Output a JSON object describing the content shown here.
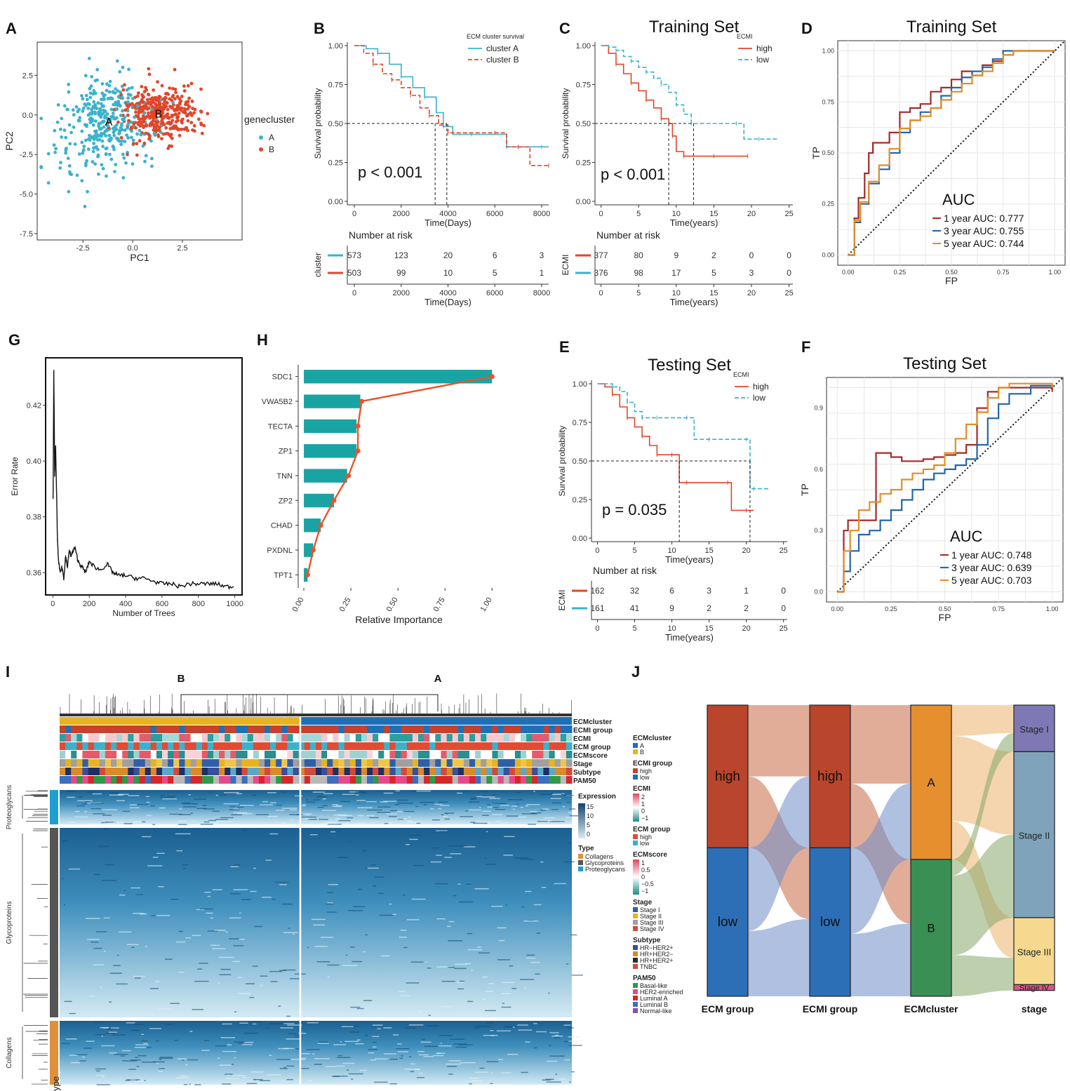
{
  "panel_labels": [
    "A",
    "B",
    "C",
    "D",
    "G",
    "H",
    "E",
    "F",
    "I",
    "J"
  ],
  "colors": {
    "red": "#e2462a",
    "teal": "#3bb2cc",
    "roc1": "#a52a2a",
    "roc3": "#2166ac",
    "roc5": "#e08f29",
    "bar": "#1aa3a3",
    "heatTop": "#1b5a8a",
    "heatLow": "#d6ebf4"
  },
  "chart_data": [
    {
      "id": "A",
      "type": "scatter",
      "xlabel": "PC1",
      "ylabel": "PC2",
      "xticks": [
        "-2.5",
        "0.0",
        "2.5"
      ],
      "yticks": [
        "2.5",
        "0.0",
        "-2.5",
        "-5.0",
        "-7.5"
      ],
      "xlim": [
        -4.8,
        5.5
      ],
      "ylim": [
        -7.9,
        4.6
      ],
      "legend_title": "genecluster",
      "legend": [
        "A",
        "B"
      ],
      "cluster_labels": [
        "A",
        "B"
      ],
      "centers": [
        {
          "name": "A",
          "x": -1.2,
          "y": -0.4
        },
        {
          "name": "B",
          "x": 1.3,
          "y": 0.1
        }
      ]
    },
    {
      "id": "B",
      "type": "line",
      "legend_title": "ECM cluster survival",
      "legend": [
        "cluster A",
        "cluster B"
      ],
      "xlabel": "Time(Days)",
      "ylabel": "Survival probability",
      "xticks": [
        "0",
        "2000",
        "4000",
        "6000",
        "8000"
      ],
      "yticks": [
        "1.00",
        "0.75",
        "0.50",
        "0.25",
        "0.00"
      ],
      "xlim": [
        -300,
        8300
      ],
      "pvalue": "p < 0.001",
      "series": [
        {
          "name": "cluster A",
          "x": [
            0,
            500,
            1000,
            1500,
            2000,
            2500,
            3000,
            3500,
            3800,
            4200,
            5000,
            6000,
            6500,
            7000,
            8000,
            8300
          ],
          "y": [
            1.0,
            0.98,
            0.95,
            0.88,
            0.8,
            0.73,
            0.67,
            0.57,
            0.48,
            0.43,
            0.43,
            0.43,
            0.35,
            0.35,
            0.35,
            0.35
          ]
        },
        {
          "name": "cluster B",
          "x": [
            0,
            400,
            800,
            1200,
            1600,
            2000,
            2400,
            2800,
            3200,
            3600,
            4000,
            5000,
            6000,
            6500,
            7000,
            7500,
            8300
          ],
          "y": [
            1.0,
            0.95,
            0.88,
            0.82,
            0.78,
            0.73,
            0.68,
            0.6,
            0.55,
            0.49,
            0.44,
            0.44,
            0.44,
            0.35,
            0.35,
            0.23,
            0.23
          ]
        }
      ],
      "risk_title": "Number at risk",
      "risk_label": "cluster",
      "risk_xticks": [
        "0",
        "2000",
        "4000",
        "6000",
        "8000"
      ],
      "risk_xlabel": "Time(Days)",
      "risk": [
        [
          "573",
          "123",
          "20",
          "6",
          "3"
        ],
        [
          "503",
          "99",
          "10",
          "5",
          "1"
        ]
      ]
    },
    {
      "id": "C",
      "type": "line",
      "title": "Training Set",
      "legend_title": "ECMI",
      "legend": [
        "high",
        "low"
      ],
      "xlabel": "Time(years)",
      "ylabel": "Survival probability",
      "xticks": [
        "0",
        "5",
        "10",
        "15",
        "20",
        "25"
      ],
      "yticks": [
        "1.00",
        "0.75",
        "0.50",
        "0.25",
        "0.00"
      ],
      "xlim": [
        -0.8,
        25.5
      ],
      "pvalue": "p < 0.001",
      "series": [
        {
          "name": "high",
          "x": [
            0,
            1,
            2,
            3,
            4,
            5,
            6,
            7,
            8,
            9,
            9.5,
            10,
            11,
            12,
            15,
            18,
            19.5
          ],
          "y": [
            1.0,
            0.95,
            0.88,
            0.82,
            0.76,
            0.71,
            0.65,
            0.6,
            0.53,
            0.5,
            0.42,
            0.32,
            0.29,
            0.29,
            0.29,
            0.29,
            0.29
          ]
        },
        {
          "name": "low",
          "x": [
            0,
            1,
            2,
            3,
            4,
            5,
            6,
            7,
            8,
            9,
            10,
            11,
            12,
            15,
            18,
            19,
            21,
            23.5
          ],
          "y": [
            1.0,
            0.99,
            0.97,
            0.93,
            0.9,
            0.86,
            0.83,
            0.79,
            0.75,
            0.7,
            0.62,
            0.56,
            0.5,
            0.5,
            0.5,
            0.4,
            0.4,
            0.4
          ]
        }
      ],
      "risk_title": "Number at risk",
      "risk_label": "ECMI",
      "risk_xticks": [
        "0",
        "5",
        "10",
        "15",
        "20",
        "25"
      ],
      "risk_xlabel": "Time(years)",
      "risk": [
        [
          "377",
          "80",
          "9",
          "2",
          "0",
          "0"
        ],
        [
          "376",
          "98",
          "17",
          "5",
          "3",
          "0"
        ]
      ]
    },
    {
      "id": "D",
      "type": "line",
      "title": "Training Set",
      "xlabel": "FP",
      "ylabel": "TP",
      "xticks": [
        "0.00",
        "0.25",
        "0.50",
        "0.75",
        "1.00"
      ],
      "yticks": [
        "1.00",
        "0.75",
        "0.50",
        "0.25",
        "0.00"
      ],
      "auc_title": "AUC",
      "series": [
        {
          "name": "1 year AUC: 0.777",
          "x": [
            0,
            0.03,
            0.05,
            0.08,
            0.1,
            0.12,
            0.15,
            0.2,
            0.25,
            0.3,
            0.35,
            0.4,
            0.45,
            0.5,
            0.55,
            0.6,
            0.65,
            0.7,
            0.75,
            0.8,
            0.9,
            1.0
          ],
          "y": [
            0,
            0.18,
            0.28,
            0.4,
            0.5,
            0.55,
            0.55,
            0.6,
            0.7,
            0.72,
            0.74,
            0.8,
            0.82,
            0.86,
            0.9,
            0.88,
            0.93,
            0.95,
            0.98,
            1.0,
            1.0,
            1.0
          ]
        },
        {
          "name": "3 year AUC: 0.755",
          "x": [
            0,
            0.03,
            0.06,
            0.1,
            0.15,
            0.2,
            0.25,
            0.3,
            0.35,
            0.4,
            0.45,
            0.5,
            0.55,
            0.6,
            0.65,
            0.7,
            0.75,
            0.8,
            0.9,
            1.0
          ],
          "y": [
            0,
            0.16,
            0.25,
            0.35,
            0.42,
            0.5,
            0.6,
            0.66,
            0.7,
            0.72,
            0.78,
            0.82,
            0.87,
            0.9,
            0.92,
            0.96,
            1.0,
            1.0,
            1.0,
            1.0
          ]
        },
        {
          "name": "5 year AUC: 0.744",
          "x": [
            0,
            0.03,
            0.06,
            0.1,
            0.15,
            0.2,
            0.25,
            0.3,
            0.35,
            0.4,
            0.45,
            0.5,
            0.55,
            0.6,
            0.65,
            0.7,
            0.75,
            0.8,
            0.9,
            1.0
          ],
          "y": [
            0,
            0.17,
            0.26,
            0.36,
            0.44,
            0.52,
            0.62,
            0.66,
            0.68,
            0.72,
            0.76,
            0.8,
            0.84,
            0.88,
            0.9,
            0.94,
            0.98,
            1.0,
            1.0,
            1.0
          ]
        }
      ]
    },
    {
      "id": "G",
      "type": "line",
      "xlabel": "Number of Trees",
      "ylabel": "Error Rate",
      "xticks": [
        "0",
        "200",
        "400",
        "600",
        "800",
        "1000"
      ],
      "yticks": [
        "0.42",
        "0.40",
        "0.38",
        "0.36"
      ],
      "xlim": [
        -40,
        1040
      ],
      "ylim": [
        0.352,
        0.437
      ],
      "x": [
        1,
        5,
        10,
        15,
        20,
        25,
        30,
        40,
        50,
        60,
        70,
        80,
        90,
        100,
        120,
        140,
        160,
        180,
        200,
        230,
        260,
        300,
        330,
        360,
        400,
        450,
        500,
        550,
        600,
        650,
        700,
        750,
        800,
        850,
        900,
        950,
        1000
      ],
      "y": [
        0.386,
        0.432,
        0.395,
        0.405,
        0.39,
        0.372,
        0.365,
        0.36,
        0.362,
        0.358,
        0.366,
        0.362,
        0.368,
        0.366,
        0.369,
        0.364,
        0.362,
        0.36,
        0.364,
        0.362,
        0.361,
        0.363,
        0.36,
        0.359,
        0.359,
        0.358,
        0.358,
        0.357,
        0.356,
        0.356,
        0.355,
        0.356,
        0.356,
        0.356,
        0.356,
        0.355,
        0.355
      ]
    },
    {
      "id": "H",
      "type": "bar",
      "orientation": "horizontal",
      "xlabel": "Relative Importance",
      "xticks": [
        "0.00",
        "0.25",
        "0.50",
        "0.75",
        "1.00"
      ],
      "categories": [
        "SDC1",
        "VWA5B2",
        "TECTA",
        "ZP1",
        "TNN",
        "ZP2",
        "CHAD",
        "PXDNL",
        "TPT1"
      ],
      "values": [
        1.0,
        0.3,
        0.28,
        0.28,
        0.23,
        0.16,
        0.09,
        0.05,
        0.02
      ]
    },
    {
      "id": "E",
      "type": "line",
      "title": "Testing Set",
      "legend_title": "ECMI",
      "legend": [
        "high",
        "low"
      ],
      "xlabel": "Time(years)",
      "ylabel": "Survival probability",
      "xticks": [
        "0",
        "5",
        "10",
        "15",
        "20",
        "25"
      ],
      "yticks": [
        "1.00",
        "0.75",
        "0.50",
        "0.25",
        "0.00"
      ],
      "xlim": [
        -0.8,
        25.5
      ],
      "pvalue": "p = 0.035",
      "series": [
        {
          "name": "high",
          "x": [
            0,
            1,
            2,
            3,
            4,
            5,
            6,
            7,
            8,
            9,
            10,
            11,
            12,
            15,
            17.5,
            18,
            20,
            21
          ],
          "y": [
            1.0,
            0.98,
            0.93,
            0.85,
            0.78,
            0.72,
            0.66,
            0.6,
            0.54,
            0.54,
            0.54,
            0.36,
            0.36,
            0.36,
            0.36,
            0.18,
            0.18,
            0.18
          ]
        },
        {
          "name": "low",
          "x": [
            0,
            1,
            2,
            3,
            4,
            5,
            6,
            7,
            8,
            10,
            12,
            13,
            15,
            18,
            20,
            20.5,
            21,
            23
          ],
          "y": [
            1.0,
            1.0,
            0.98,
            0.95,
            0.88,
            0.82,
            0.78,
            0.78,
            0.78,
            0.78,
            0.78,
            0.64,
            0.64,
            0.64,
            0.64,
            0.32,
            0.32,
            0.32
          ]
        }
      ],
      "risk_title": "Number at risk",
      "risk_label": "ECMI",
      "risk_xticks": [
        "0",
        "5",
        "10",
        "15",
        "20",
        "25"
      ],
      "risk_xlabel": "Time(years)",
      "risk": [
        [
          "162",
          "32",
          "6",
          "3",
          "1",
          "0"
        ],
        [
          "161",
          "41",
          "9",
          "2",
          "2",
          "0"
        ]
      ]
    },
    {
      "id": "F",
      "type": "line",
      "title": "Testing Set",
      "xlabel": "FP",
      "ylabel": "TP",
      "xticks": [
        "0.00",
        "0.25",
        "0.50",
        "0.75",
        "1.00"
      ],
      "yticks": [
        "0.9",
        "0.6",
        "0.3",
        "0.0"
      ],
      "ylim": [
        0,
        1.05
      ],
      "auc_title": "AUC",
      "series": [
        {
          "name": "1 year AUC: 0.748",
          "x": [
            0,
            0.03,
            0.05,
            0.1,
            0.15,
            0.18,
            0.2,
            0.25,
            0.3,
            0.35,
            0.4,
            0.45,
            0.5,
            0.55,
            0.6,
            0.65,
            0.7,
            0.75,
            0.8,
            0.9,
            1.0
          ],
          "y": [
            0,
            0.3,
            0.35,
            0.35,
            0.35,
            0.68,
            0.68,
            0.66,
            0.64,
            0.64,
            0.65,
            0.66,
            0.67,
            0.68,
            0.72,
            0.9,
            0.98,
            1.0,
            1.0,
            1.0,
            0.98
          ]
        },
        {
          "name": "3 year AUC: 0.639",
          "x": [
            0,
            0.03,
            0.06,
            0.1,
            0.15,
            0.2,
            0.25,
            0.3,
            0.35,
            0.4,
            0.45,
            0.5,
            0.55,
            0.6,
            0.65,
            0.7,
            0.75,
            0.8,
            0.9,
            1.0
          ],
          "y": [
            0,
            0.1,
            0.2,
            0.28,
            0.3,
            0.35,
            0.4,
            0.45,
            0.5,
            0.55,
            0.58,
            0.6,
            0.62,
            0.65,
            0.72,
            0.85,
            0.92,
            0.97,
            1.01,
            1.0
          ]
        },
        {
          "name": "5 year AUC: 0.703",
          "x": [
            0,
            0.03,
            0.06,
            0.1,
            0.15,
            0.2,
            0.25,
            0.3,
            0.35,
            0.4,
            0.45,
            0.5,
            0.55,
            0.6,
            0.65,
            0.7,
            0.75,
            0.8,
            0.9,
            1.0
          ],
          "y": [
            0,
            0.2,
            0.3,
            0.4,
            0.44,
            0.48,
            0.5,
            0.55,
            0.58,
            0.6,
            0.62,
            0.68,
            0.75,
            0.82,
            0.88,
            0.95,
            1.0,
            1.02,
            1.02,
            1.0
          ]
        }
      ]
    },
    {
      "id": "I",
      "type": "heatmap",
      "column_groups": [
        "B",
        "A"
      ],
      "annotation_rows": [
        "ECMcluster",
        "ECMI group",
        "ECMI",
        "ECM group",
        "ECMscore",
        "Stage",
        "Subtype",
        "PAM50"
      ],
      "row_groups": [
        "Proteoglycans",
        "Glycoproteins",
        "Collagens"
      ],
      "row_axis_label": "Type",
      "legend": [
        {
          "title": "ECMcluster",
          "items": [
            "A",
            "B"
          ]
        },
        {
          "title": "ECMI group",
          "items": [
            "high",
            "low"
          ]
        },
        {
          "title": "ECMI",
          "ticks": [
            "2",
            "1",
            "0",
            "−1"
          ]
        },
        {
          "title": "ECM group",
          "items": [
            "high",
            "low"
          ]
        },
        {
          "title": "ECMscore",
          "ticks": [
            "1",
            "0.5",
            "0",
            "−0.5",
            "−1"
          ]
        },
        {
          "title": "Stage",
          "items": [
            "Stage I",
            "Stage II",
            "Stage III",
            "Stage IV"
          ]
        },
        {
          "title": "Subtype",
          "items": [
            "HR−HER2+",
            "HR+HER2−",
            "HR+HER2+",
            "TNBC"
          ]
        },
        {
          "title": "PAM50",
          "items": [
            "Basal-like",
            "HER2-enriched",
            "Luminal A",
            "Luminal B",
            "Normal-like"
          ]
        }
      ],
      "expression_legend": {
        "title": "Expression",
        "ticks": [
          "15",
          "10",
          "5",
          "0"
        ]
      },
      "type_legend": {
        "title": "Type",
        "items": [
          "Collagens",
          "Glycoproteins",
          "Proteoglycans"
        ]
      }
    },
    {
      "id": "J",
      "type": "sankey",
      "axes": [
        "ECM group",
        "ECMI group",
        "ECMcluster",
        "stage"
      ],
      "nodes": [
        {
          "axis": "ECM group",
          "label": "high",
          "share": 0.49
        },
        {
          "axis": "ECM group",
          "label": "low",
          "share": 0.51
        },
        {
          "axis": "ECMI group",
          "label": "high",
          "share": 0.49
        },
        {
          "axis": "ECMI group",
          "label": "low",
          "share": 0.51
        },
        {
          "axis": "ECMcluster",
          "label": "A",
          "share": 0.53
        },
        {
          "axis": "ECMcluster",
          "label": "B",
          "share": 0.47
        },
        {
          "axis": "stage",
          "label": "Stage I",
          "share": 0.16
        },
        {
          "axis": "stage",
          "label": "Stage II",
          "share": 0.57
        },
        {
          "axis": "stage",
          "label": "Stage III",
          "share": 0.23
        },
        {
          "axis": "stage",
          "label": "Stage IV",
          "share": 0.02
        }
      ]
    }
  ]
}
